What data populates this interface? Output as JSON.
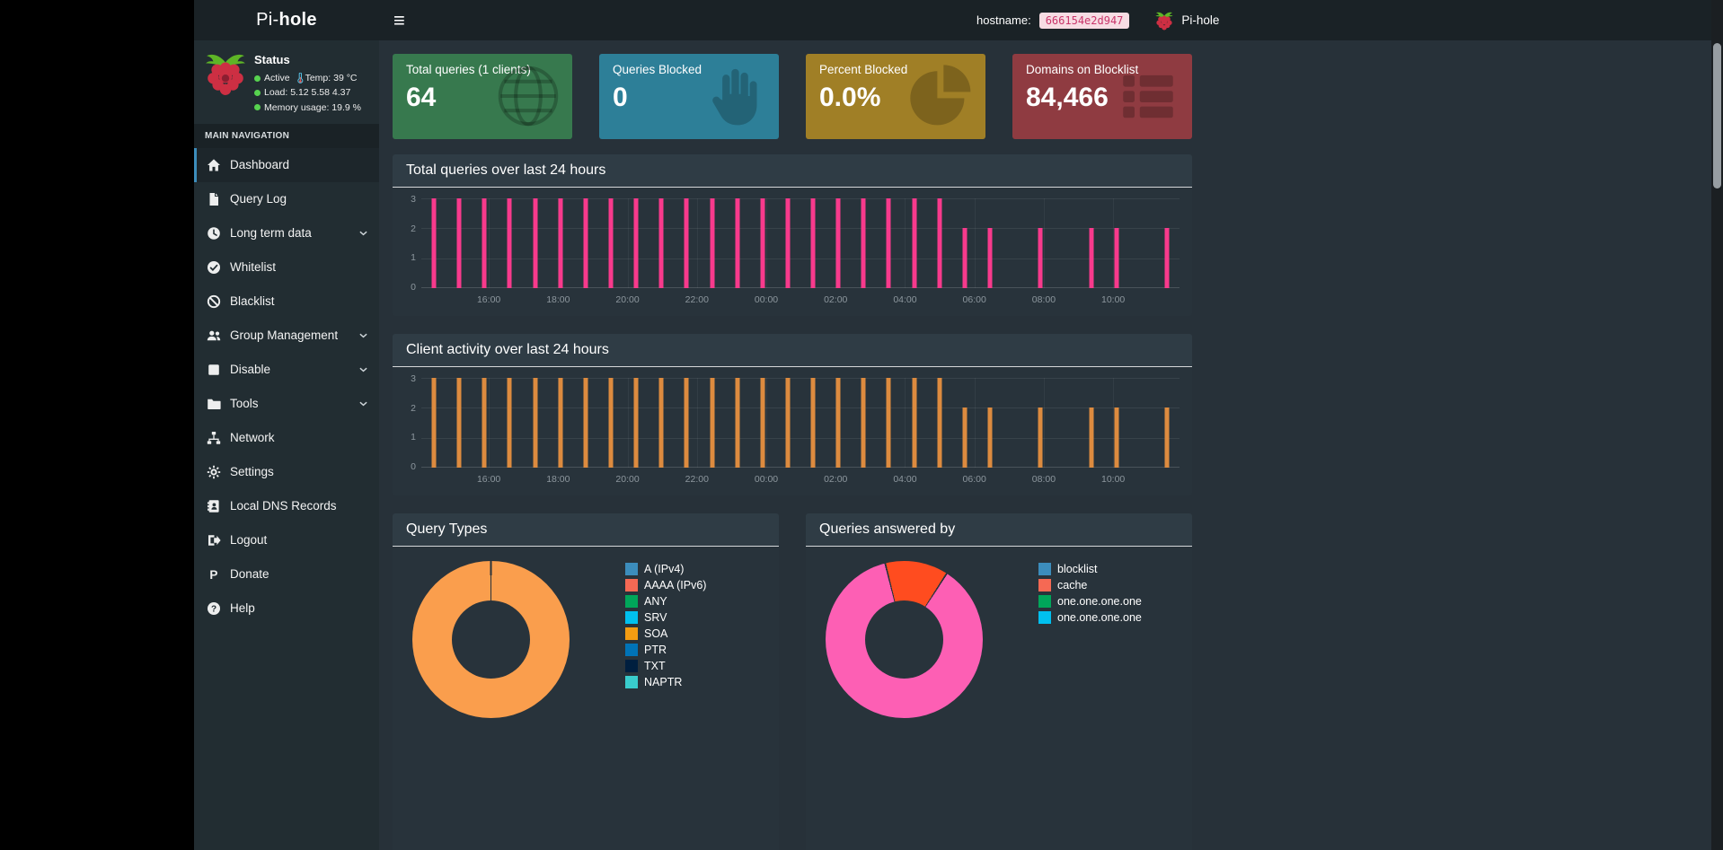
{
  "navbar": {
    "menu_toggle_icon": "≡",
    "hostname_label": "hostname:",
    "hostname_value": "666154e2d947",
    "brand": "Pi-hole"
  },
  "sidebar": {
    "brand_regular": "Pi-",
    "brand_bold": "hole",
    "status": {
      "title": "Status",
      "active": "Active",
      "temp": "Temp: 39 °C",
      "load": "Load: 5.12 5.58 4.37",
      "memory": "Memory usage: 19.9 %"
    },
    "section_label": "MAIN NAVIGATION",
    "items": [
      {
        "label": "Dashboard",
        "icon": "home",
        "active": true,
        "expandable": false
      },
      {
        "label": "Query Log",
        "icon": "file",
        "active": false,
        "expandable": false
      },
      {
        "label": "Long term data",
        "icon": "clock",
        "active": false,
        "expandable": true
      },
      {
        "label": "Whitelist",
        "icon": "check-circle",
        "active": false,
        "expandable": false
      },
      {
        "label": "Blacklist",
        "icon": "ban",
        "active": false,
        "expandable": false
      },
      {
        "label": "Group Management",
        "icon": "users",
        "active": false,
        "expandable": true
      },
      {
        "label": "Disable",
        "icon": "stop",
        "active": false,
        "expandable": true
      },
      {
        "label": "Tools",
        "icon": "folder",
        "active": false,
        "expandable": true
      },
      {
        "label": "Network",
        "icon": "network",
        "active": false,
        "expandable": false
      },
      {
        "label": "Settings",
        "icon": "gears",
        "active": false,
        "expandable": false
      },
      {
        "label": "Local DNS Records",
        "icon": "address-book",
        "active": false,
        "expandable": false
      },
      {
        "label": "Logout",
        "icon": "sign-out",
        "active": false,
        "expandable": false
      },
      {
        "label": "Donate",
        "icon": "paypal",
        "active": false,
        "expandable": false
      },
      {
        "label": "Help",
        "icon": "question",
        "active": false,
        "expandable": false
      }
    ]
  },
  "cards": [
    {
      "title": "Total queries (1 clients)",
      "value": "64",
      "color": "#37794e",
      "icon": "globe"
    },
    {
      "title": "Queries Blocked",
      "value": "0",
      "color": "#2d7f98",
      "icon": "hand"
    },
    {
      "title": "Percent Blocked",
      "value": "0.0%",
      "color": "#a07f26",
      "icon": "pie"
    },
    {
      "title": "Domains on Blocklist",
      "value": "84,466",
      "color": "#8f3b41",
      "icon": "list"
    }
  ],
  "chart_data": [
    {
      "type": "bar",
      "title": "Total queries over last 24 hours",
      "bar_color": "#f83a8c",
      "x_tick_labels": [
        "16:00",
        "18:00",
        "20:00",
        "22:00",
        "00:00",
        "02:00",
        "04:00",
        "06:00",
        "08:00",
        "10:00"
      ],
      "yticks": [
        0,
        1,
        2,
        3
      ],
      "ylim": [
        0,
        3
      ],
      "values": [
        3,
        3,
        3,
        3,
        3,
        3,
        3,
        3,
        3,
        3,
        3,
        3,
        3,
        3,
        3,
        3,
        3,
        3,
        3,
        3,
        3,
        2,
        2,
        0,
        2,
        0,
        2,
        2,
        0,
        2
      ]
    },
    {
      "type": "bar",
      "title": "Client activity over last 24 hours",
      "bar_color": "#dd8b3f",
      "x_tick_labels": [
        "16:00",
        "18:00",
        "20:00",
        "22:00",
        "00:00",
        "02:00",
        "04:00",
        "06:00",
        "08:00",
        "10:00"
      ],
      "yticks": [
        0,
        1,
        2,
        3
      ],
      "ylim": [
        0,
        3
      ],
      "values": [
        3,
        3,
        3,
        3,
        3,
        3,
        3,
        3,
        3,
        3,
        3,
        3,
        3,
        3,
        3,
        3,
        3,
        3,
        3,
        3,
        3,
        2,
        2,
        0,
        2,
        0,
        2,
        2,
        0,
        2
      ]
    },
    {
      "type": "donut",
      "title": "Query Types",
      "legend_position": "right",
      "legend": [
        {
          "label": "A (IPv4)",
          "color": "#3c8dbc"
        },
        {
          "label": "AAAA (IPv6)",
          "color": "#f56954"
        },
        {
          "label": "ANY",
          "color": "#00a65a"
        },
        {
          "label": "SRV",
          "color": "#00c0ef"
        },
        {
          "label": "SOA",
          "color": "#f39c12"
        },
        {
          "label": "PTR",
          "color": "#0073b7"
        },
        {
          "label": "TXT",
          "color": "#001f3f"
        },
        {
          "label": "NAPTR",
          "color": "#39cccc"
        }
      ],
      "rotate_deg": 0,
      "slices": [
        {
          "color": "#fa9e4d",
          "percent": 100
        }
      ]
    },
    {
      "type": "donut",
      "title": "Queries answered by",
      "legend_position": "right",
      "legend": [
        {
          "label": "blocklist",
          "color": "#3c8dbc"
        },
        {
          "label": "cache",
          "color": "#f56954"
        },
        {
          "label": "one.one.one.one",
          "color": "#00a65a"
        },
        {
          "label": "one.one.one.one",
          "color": "#00c0ef"
        }
      ],
      "rotate_deg": -14,
      "slices": [
        {
          "color": "#ff4c1f",
          "percent": 13
        },
        {
          "color": "#fd5fb4",
          "percent": 87
        }
      ]
    }
  ]
}
